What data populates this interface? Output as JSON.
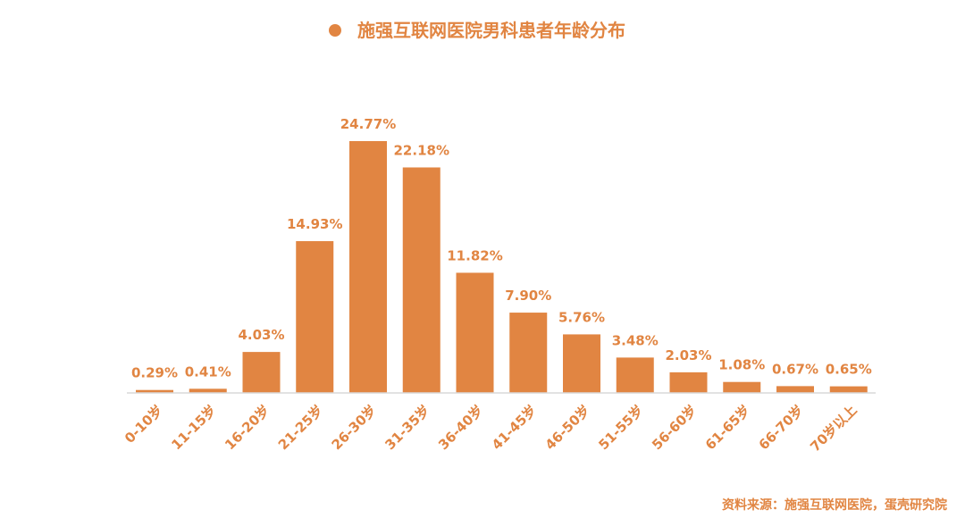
{
  "colors": {
    "bar": "#E18542",
    "text": "#E18542",
    "axis": "#D9D9D9",
    "background": "#FFFFFF"
  },
  "source": "资料来源：施强互联网医院，蛋壳研究院",
  "chart_data": {
    "type": "bar",
    "title": "施强互联网医院男科患者年龄分布",
    "categories": [
      "0-10岁",
      "11-15岁",
      "16-20岁",
      "21-25岁",
      "26-30岁",
      "31-35岁",
      "36-40岁",
      "41-45岁",
      "46-50岁",
      "51-55岁",
      "56-60岁",
      "61-65岁",
      "66-70岁",
      "70岁以上"
    ],
    "series": [
      {
        "values": [
          0.29,
          0.41,
          4.03,
          14.93,
          24.77,
          22.18,
          11.82,
          7.9,
          5.76,
          3.48,
          2.03,
          1.08,
          0.67,
          0.65
        ],
        "labels": [
          "0.29%",
          "0.41%",
          "4.03%",
          "14.93%",
          "24.77%",
          "22.18%",
          "11.82%",
          "7.90%",
          "5.76%",
          "3.48%",
          "2.03%",
          "1.08%",
          "0.67%",
          "0.65%"
        ]
      }
    ],
    "legend": "top-center",
    "grid": false
  }
}
